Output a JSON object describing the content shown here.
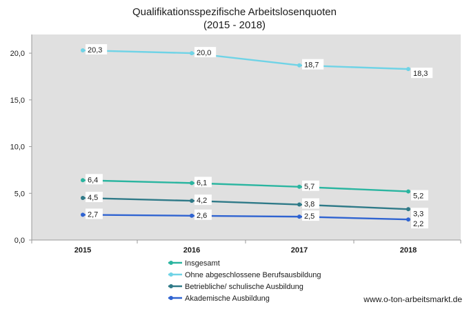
{
  "chart_data": {
    "type": "line",
    "title": [
      "Qualifikationsspezifische Arbeitslosenquoten",
      "(2015 - 2018)"
    ],
    "x": [
      "2015",
      "2016",
      "2017",
      "2018"
    ],
    "yticks": [
      "0,0",
      "5,0",
      "10,0",
      "15,0",
      "20,0"
    ],
    "ylim": [
      0,
      22
    ],
    "grid": false,
    "legend_position": "bottom-left",
    "series": [
      {
        "name": "Insgesamt",
        "color": "#2ab5a0",
        "values": [
          6.4,
          6.1,
          5.7,
          5.2
        ],
        "labels": [
          "6,4",
          "6,1",
          "5,7",
          "5,2"
        ]
      },
      {
        "name": "Ohne abgeschlossene Berufsausbildung",
        "color": "#6fd3e6",
        "values": [
          20.3,
          20.0,
          18.7,
          18.3
        ],
        "labels": [
          "20,3",
          "20,0",
          "18,7",
          "18,3"
        ]
      },
      {
        "name": "Betriebliche/ schulische Ausbildung",
        "color": "#2f7a88",
        "values": [
          4.5,
          4.2,
          3.8,
          3.3
        ],
        "labels": [
          "4,5",
          "4,2",
          "3,8",
          "3,3"
        ]
      },
      {
        "name": "Akademische Ausbildung",
        "color": "#2f63d1",
        "values": [
          2.7,
          2.6,
          2.5,
          2.2
        ],
        "labels": [
          "2,7",
          "2,6",
          "2,5",
          "2,2"
        ]
      }
    ],
    "plot_background": "#e0e0e0"
  },
  "source": "www.o-ton-arbeitsmarkt.de"
}
